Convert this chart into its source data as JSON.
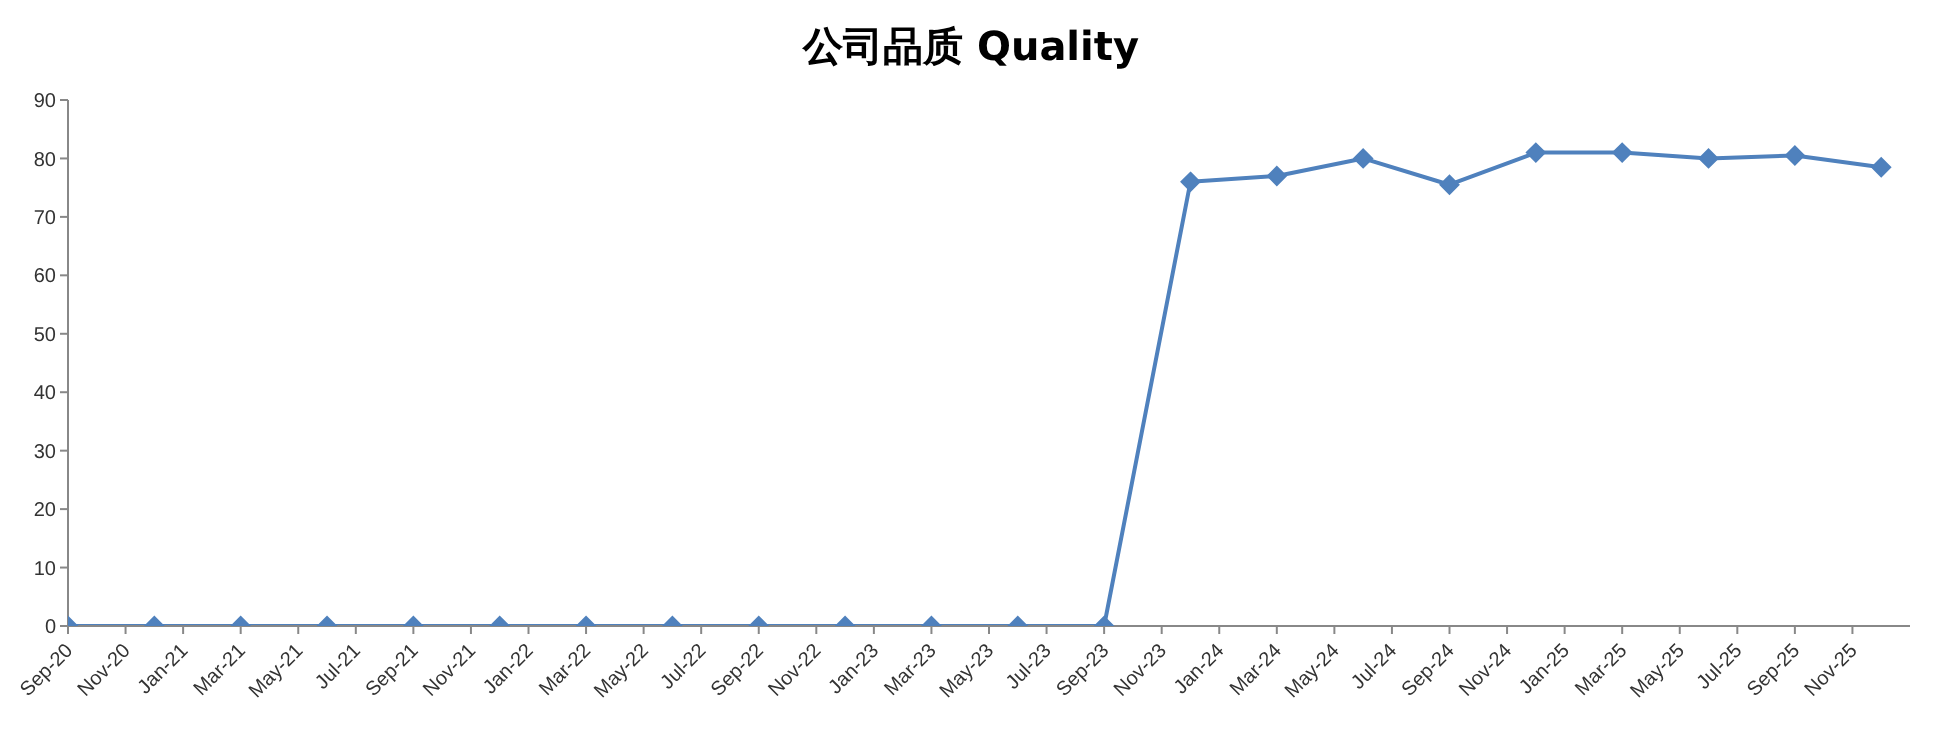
{
  "chart_data": {
    "type": "line",
    "title": "公司品质 Quality",
    "x": [
      "2020-09",
      "2020-12",
      "2021-03",
      "2021-06",
      "2021-09",
      "2021-12",
      "2022-03",
      "2022-06",
      "2022-09",
      "2022-12",
      "2023-03",
      "2023-06",
      "2023-09",
      "2023-12",
      "2024-03",
      "2024-06",
      "2024-09",
      "2024-12",
      "2025-03",
      "2025-06",
      "2025-09",
      "2025-12"
    ],
    "series": [
      {
        "color": "#4f81bd",
        "values": [
          0,
          0,
          0,
          0,
          0,
          0,
          0,
          0,
          0,
          0,
          0,
          0,
          0,
          76,
          77,
          80,
          75.5,
          81,
          81,
          80,
          80.5,
          78.5
        ]
      }
    ],
    "xlim": [
      "2020-09",
      "2026-01"
    ],
    "xticks": [
      {
        "value": "2020-09",
        "label": "Sep-20"
      },
      {
        "value": "2020-11",
        "label": "Nov-20"
      },
      {
        "value": "2021-01",
        "label": "Jan-21"
      },
      {
        "value": "2021-03",
        "label": "Mar-21"
      },
      {
        "value": "2021-05",
        "label": "May-21"
      },
      {
        "value": "2021-07",
        "label": "Jul-21"
      },
      {
        "value": "2021-09",
        "label": "Sep-21"
      },
      {
        "value": "2021-11",
        "label": "Nov-21"
      },
      {
        "value": "2022-01",
        "label": "Jan-22"
      },
      {
        "value": "2022-03",
        "label": "Mar-22"
      },
      {
        "value": "2022-05",
        "label": "May-22"
      },
      {
        "value": "2022-07",
        "label": "Jul-22"
      },
      {
        "value": "2022-09",
        "label": "Sep-22"
      },
      {
        "value": "2022-11",
        "label": "Nov-22"
      },
      {
        "value": "2023-01",
        "label": "Jan-23"
      },
      {
        "value": "2023-03",
        "label": "Mar-23"
      },
      {
        "value": "2023-05",
        "label": "May-23"
      },
      {
        "value": "2023-07",
        "label": "Jul-23"
      },
      {
        "value": "2023-09",
        "label": "Sep-23"
      },
      {
        "value": "2023-11",
        "label": "Nov-23"
      },
      {
        "value": "2024-01",
        "label": "Jan-24"
      },
      {
        "value": "2024-03",
        "label": "Mar-24"
      },
      {
        "value": "2024-05",
        "label": "May-24"
      },
      {
        "value": "2024-07",
        "label": "Jul-24"
      },
      {
        "value": "2024-09",
        "label": "Sep-24"
      },
      {
        "value": "2024-11",
        "label": "Nov-24"
      },
      {
        "value": "2025-01",
        "label": "Jan-25"
      },
      {
        "value": "2025-03",
        "label": "Mar-25"
      },
      {
        "value": "2025-05",
        "label": "May-25"
      },
      {
        "value": "2025-07",
        "label": "Jul-25"
      },
      {
        "value": "2025-09",
        "label": "Sep-25"
      },
      {
        "value": "2025-11",
        "label": "Nov-25"
      }
    ],
    "ylim": [
      0,
      90
    ],
    "yticks": [
      0,
      10,
      20,
      30,
      40,
      50,
      60,
      70,
      80,
      90
    ],
    "grid": false,
    "legend": false,
    "marker": "diamond",
    "line_style": "solid"
  }
}
